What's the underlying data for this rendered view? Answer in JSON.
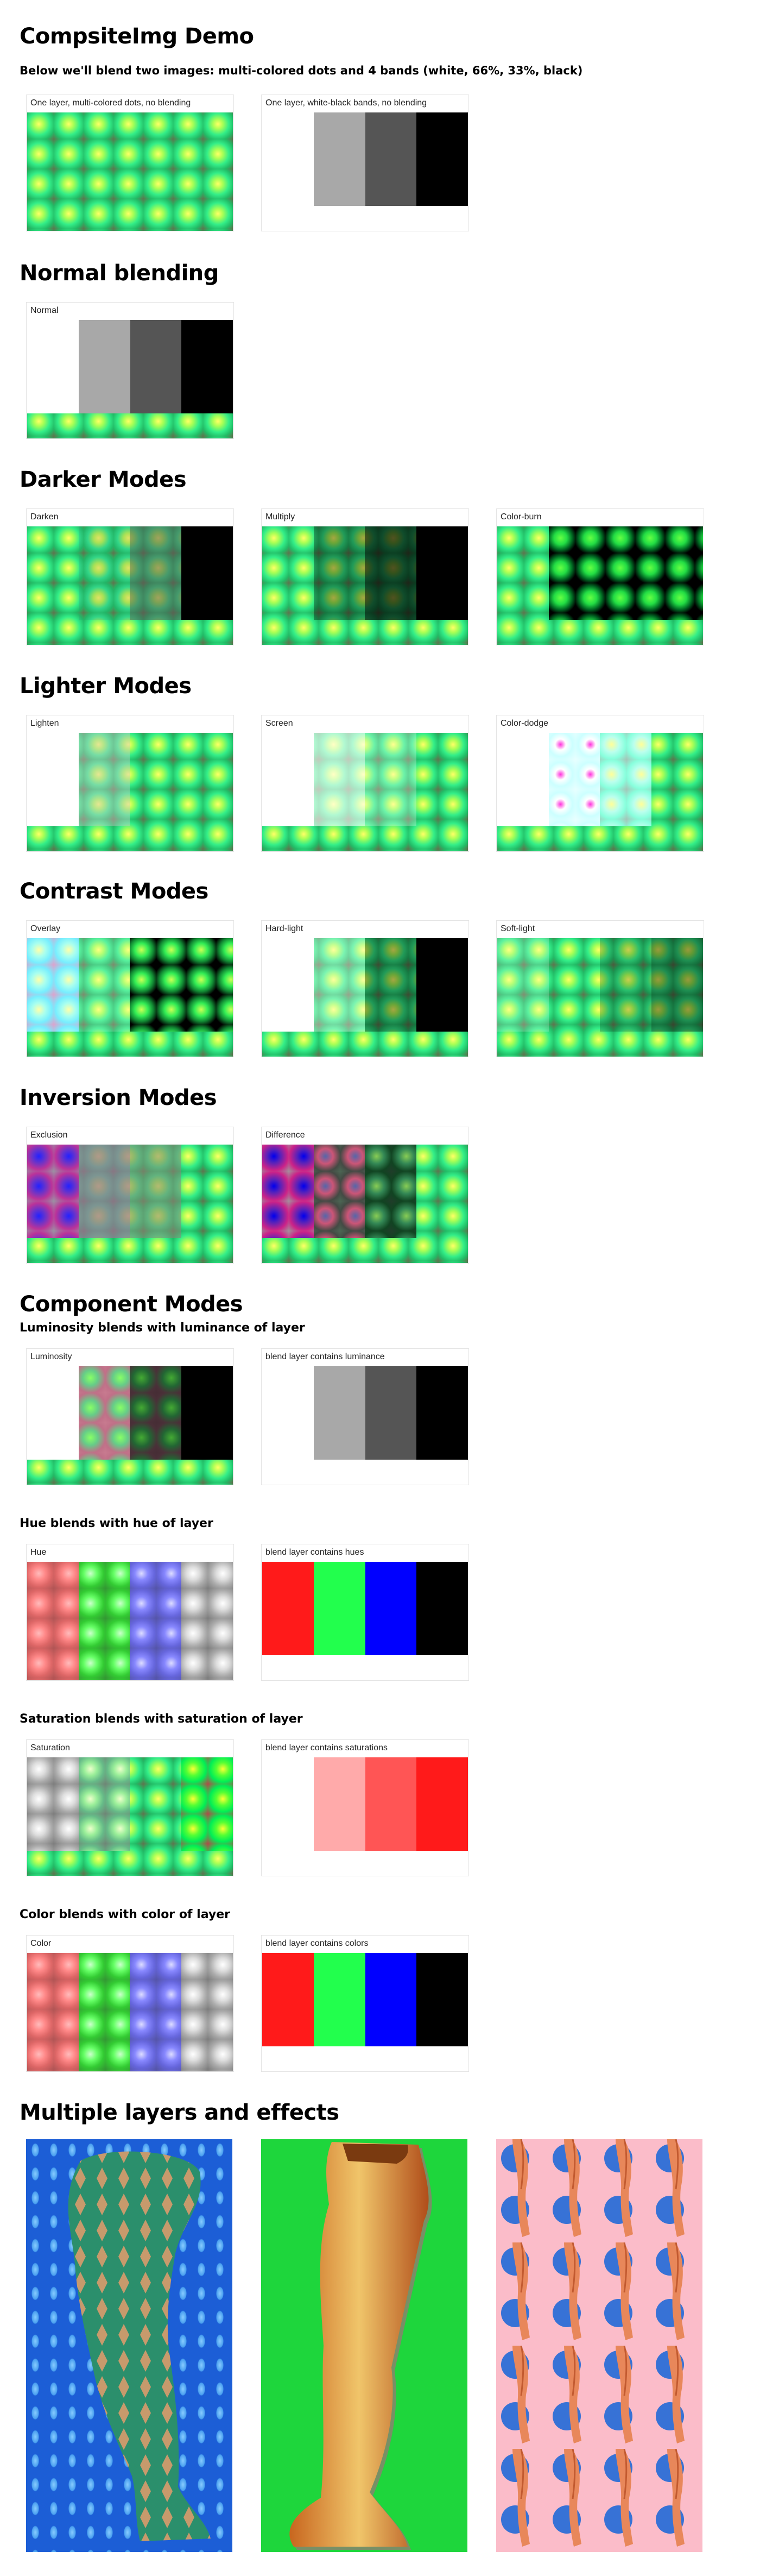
{
  "page": {
    "title": "CompsiteImg Demo",
    "subtitle": "Below we'll blend two images: multi-colored dots and 4 bands (white, 66%, 33%, black)"
  },
  "intro": {
    "dots_label": "One layer, multi-colored dots, no blending",
    "bands_label": "One layer, white-black bands, no blending"
  },
  "sections": {
    "normal": {
      "title": "Normal blending",
      "labels": [
        "Normal"
      ]
    },
    "darker": {
      "title": "Darker Modes",
      "labels": [
        "Darken",
        "Multiply",
        "Color-burn"
      ]
    },
    "lighter": {
      "title": "Lighter Modes",
      "labels": [
        "Lighten",
        "Screen",
        "Color-dodge"
      ]
    },
    "contrast": {
      "title": "Contrast Modes",
      "labels": [
        "Overlay",
        "Hard-light",
        "Soft-light"
      ]
    },
    "inversion": {
      "title": "Inversion Modes",
      "labels": [
        "Exclusion",
        "Difference"
      ]
    },
    "component": {
      "title": "Component Modes",
      "luminosity": {
        "heading": "Luminosity blends with luminance of layer",
        "label": "Luminosity",
        "layer_label": "blend layer contains luminance"
      },
      "hue": {
        "heading": "Hue blends with hue of layer",
        "label": "Hue",
        "layer_label": "blend layer contains hues"
      },
      "saturation": {
        "heading": "Saturation blends with saturation of layer",
        "label": "Saturation",
        "layer_label": "blend layer contains saturations"
      },
      "color": {
        "heading": "Color blends with color of layer",
        "label": "Color",
        "layer_label": "blend layer contains colors"
      }
    },
    "multiple": {
      "title": "Multiple layers and effects"
    }
  },
  "colors": {
    "bands": [
      "#ffffff",
      "#a8a8a8",
      "#555555",
      "#000000"
    ],
    "hues": [
      "#ff1a1a",
      "#22ff4d",
      "#0000ff",
      "#000000"
    ],
    "saturations": [
      "#ffffff",
      "#ffaaaa",
      "#ff5555",
      "#ff1a1a"
    ]
  }
}
